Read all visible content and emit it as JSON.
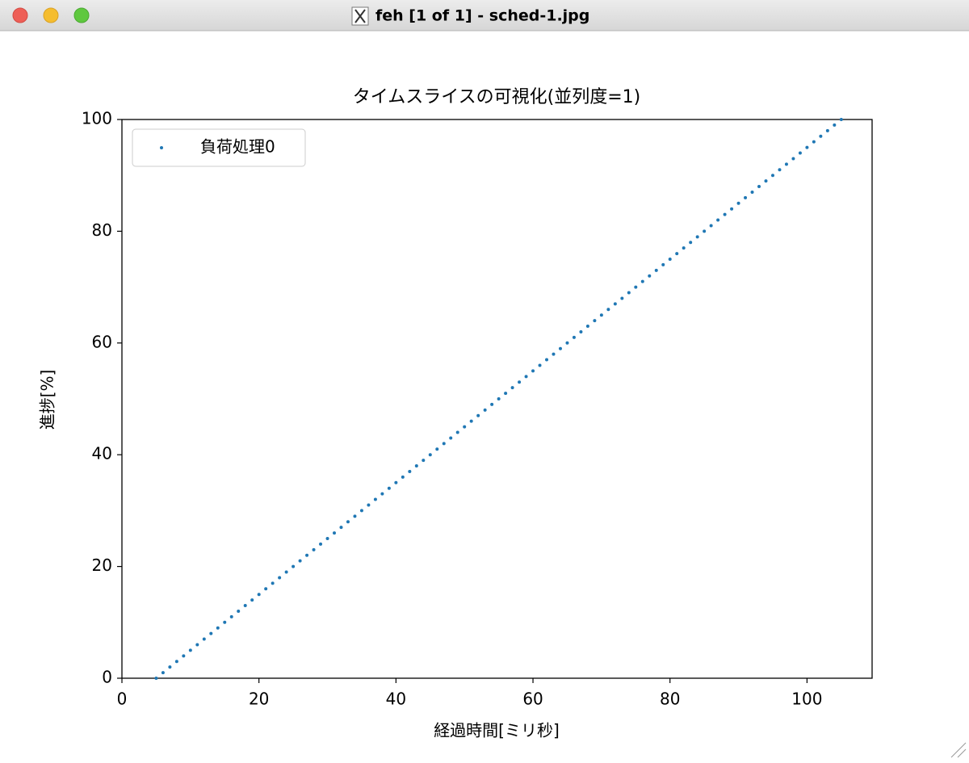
{
  "window": {
    "title": "feh [1 of 1] - sched-1.jpg"
  },
  "chart_data": {
    "type": "scatter",
    "title": "タイムスライスの可視化(並列度=1)",
    "x_label": "経過時間[ミリ秒]",
    "y_label": "進捗[%]",
    "xlim": [
      0,
      109.5
    ],
    "ylim": [
      0,
      100
    ],
    "xticks": [
      0,
      20,
      40,
      60,
      80,
      100
    ],
    "yticks": [
      0,
      20,
      40,
      60,
      80,
      100
    ],
    "legend": "upper left",
    "grid": false,
    "series": [
      {
        "name": "負荷処理0",
        "color": "#1f77b4",
        "x": [
          5,
          6,
          7,
          8,
          9,
          10,
          11,
          12,
          13,
          14,
          15,
          16,
          17,
          18,
          19,
          20,
          21,
          22,
          23,
          24,
          25,
          26,
          27,
          28,
          29,
          30,
          31,
          32,
          33,
          34,
          35,
          36,
          37,
          38,
          39,
          40,
          41,
          42,
          43,
          44,
          45,
          46,
          47,
          48,
          49,
          50,
          51,
          52,
          53,
          54,
          55,
          56,
          57,
          58,
          59,
          60,
          61,
          62,
          63,
          64,
          65,
          66,
          67,
          68,
          69,
          70,
          71,
          72,
          73,
          74,
          75,
          76,
          77,
          78,
          79,
          80,
          81,
          82,
          83,
          84,
          85,
          86,
          87,
          88,
          89,
          90,
          91,
          92,
          93,
          94,
          95,
          96,
          97,
          98,
          99,
          100,
          101,
          102,
          103,
          104,
          105
        ],
        "values": [
          0,
          1,
          2,
          3,
          4,
          5,
          6,
          7,
          8,
          9,
          10,
          11,
          12,
          13,
          14,
          15,
          16,
          17,
          18,
          19,
          20,
          21,
          22,
          23,
          24,
          25,
          26,
          27,
          28,
          29,
          30,
          31,
          32,
          33,
          34,
          35,
          36,
          37,
          38,
          39,
          40,
          41,
          42,
          43,
          44,
          45,
          46,
          47,
          48,
          49,
          50,
          51,
          52,
          53,
          54,
          55,
          56,
          57,
          58,
          59,
          60,
          61,
          62,
          63,
          64,
          65,
          66,
          67,
          68,
          69,
          70,
          71,
          72,
          73,
          74,
          75,
          76,
          77,
          78,
          79,
          80,
          81,
          82,
          83,
          84,
          85,
          86,
          87,
          88,
          89,
          90,
          91,
          92,
          93,
          94,
          95,
          96,
          97,
          98,
          99,
          100
        ]
      }
    ]
  }
}
